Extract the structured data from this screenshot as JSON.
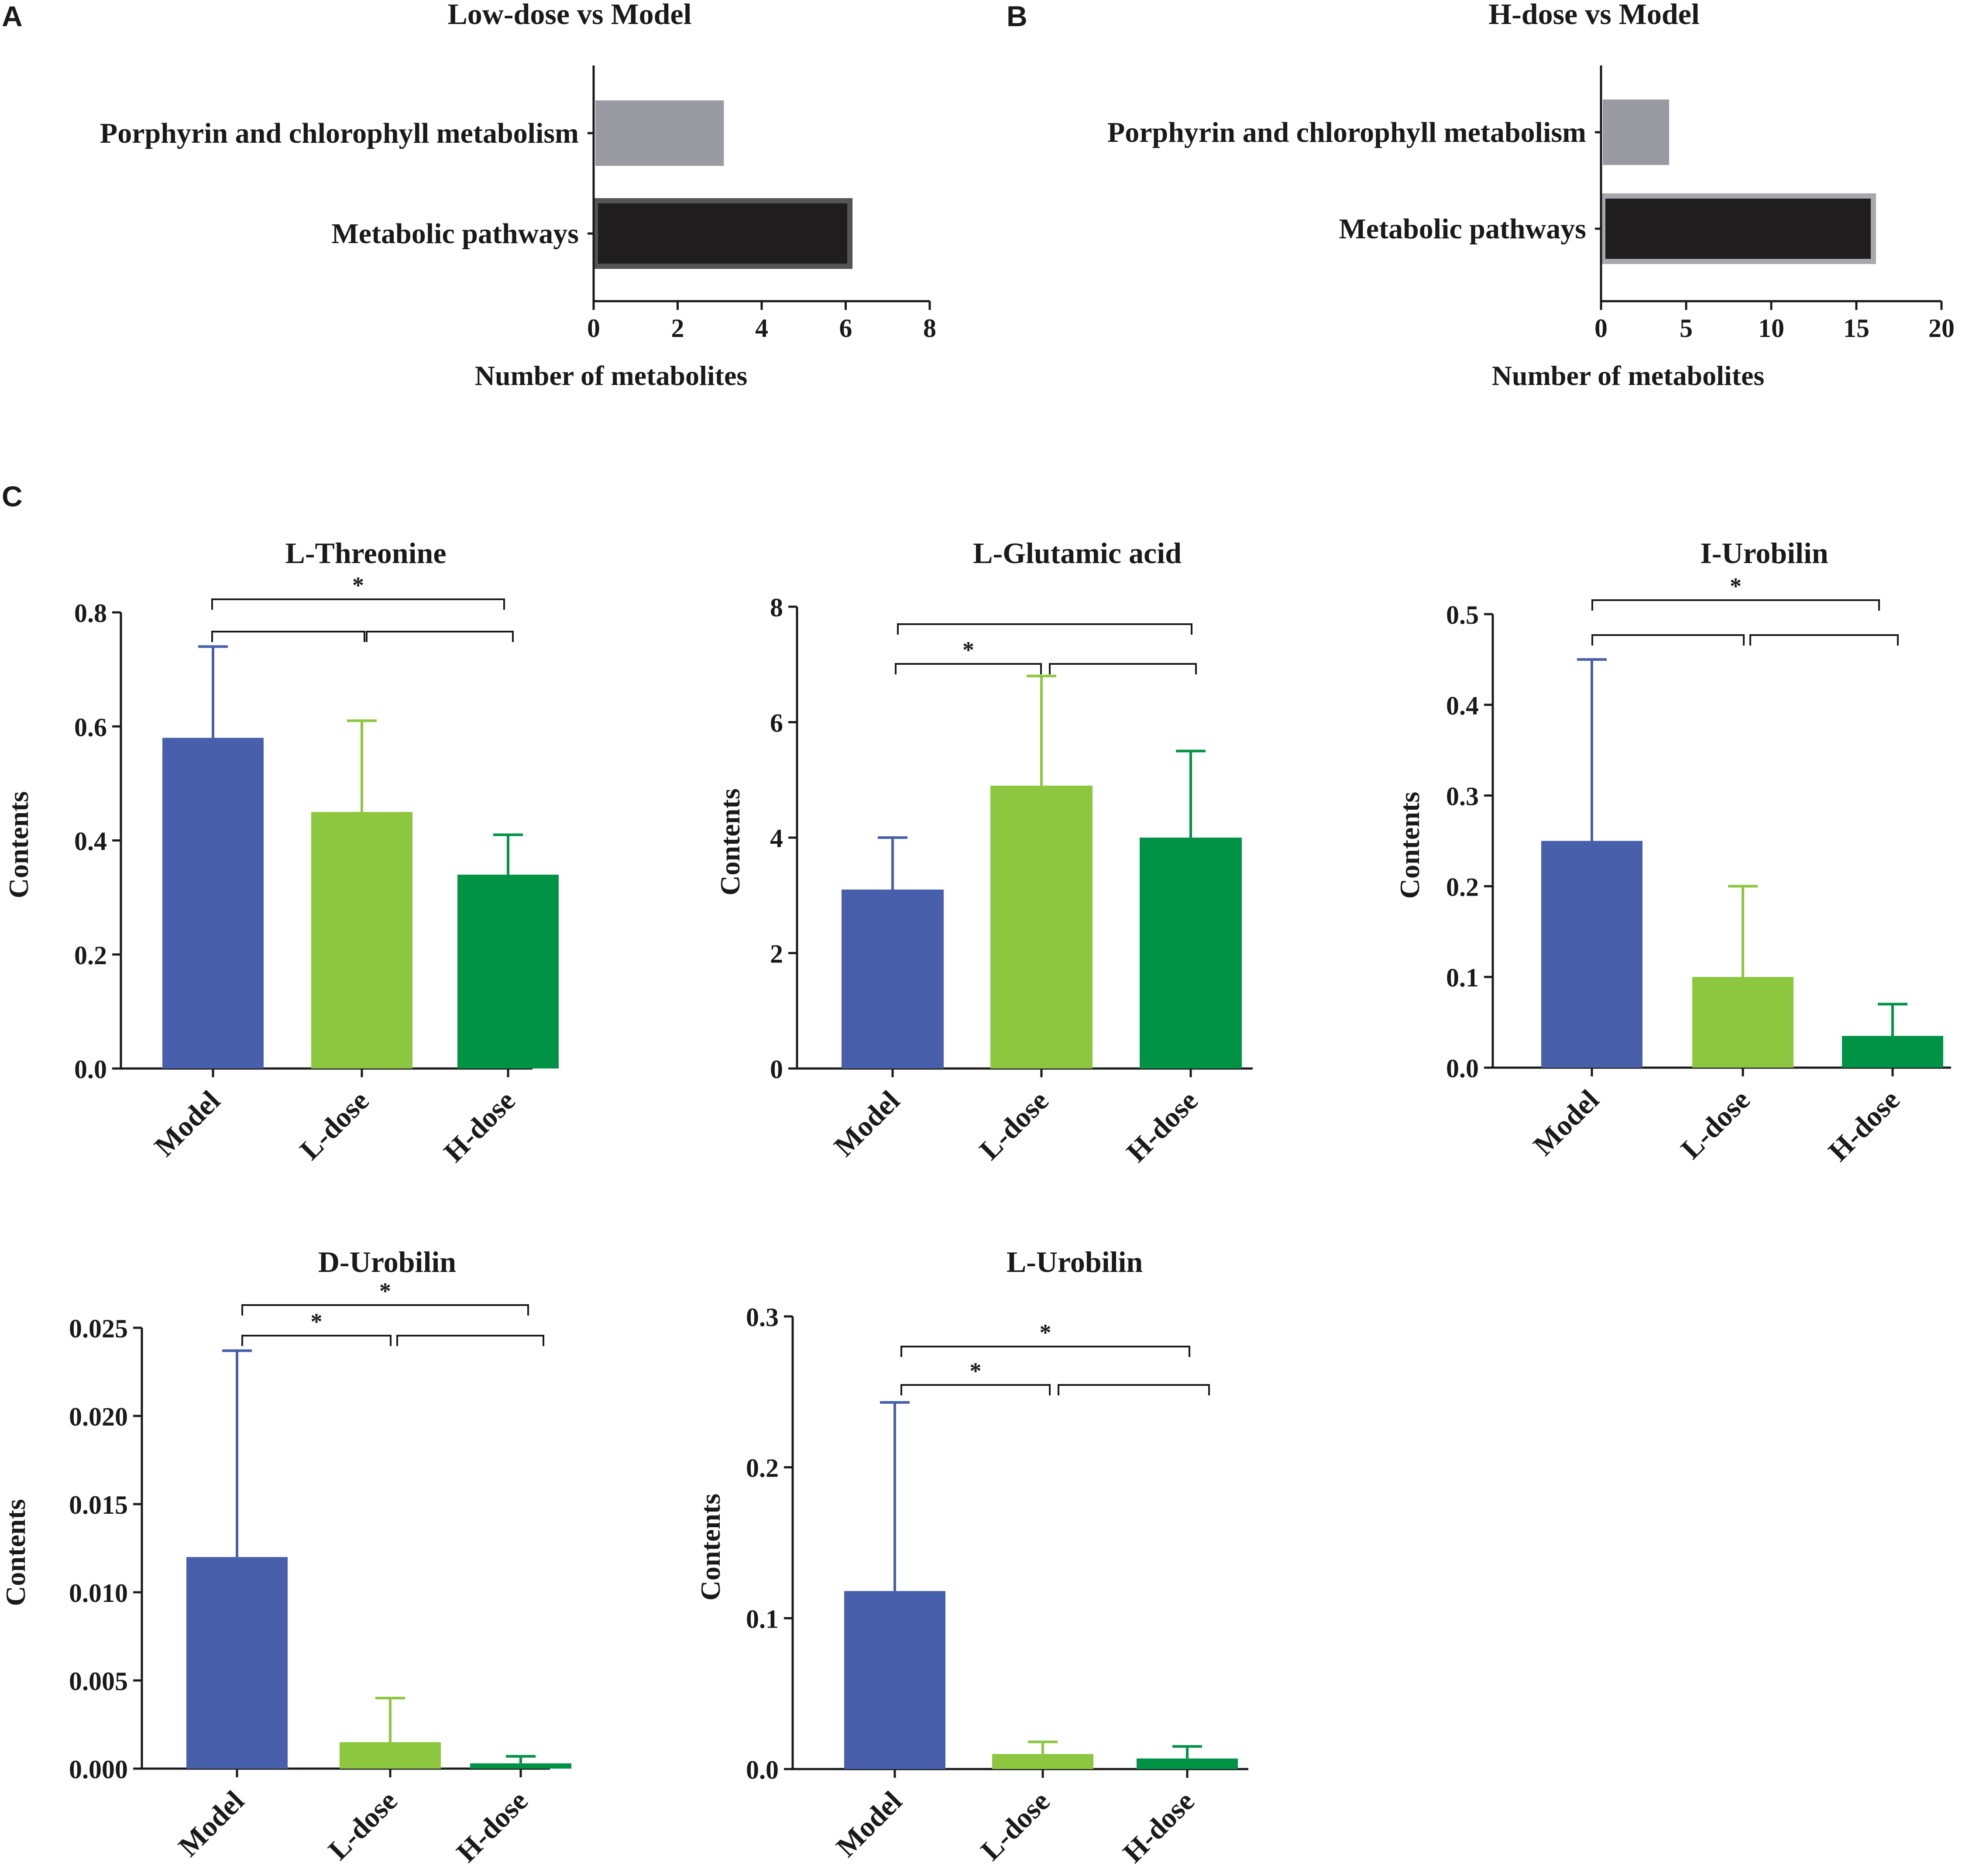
{
  "figure": {
    "panel_labels": [
      "A",
      "B",
      "C"
    ]
  },
  "chart_data": [
    {
      "id": "A",
      "type": "bar",
      "orientation": "horizontal",
      "title": "Low-dose vs Model",
      "xlabel": "Number of metabolites",
      "ylabel": "",
      "xlim": [
        0,
        8
      ],
      "ticks": [
        "0",
        "2",
        "4",
        "6",
        "8"
      ],
      "categories": [
        "Porphyrin and chlorophyll metabolism",
        "Metabolic pathways"
      ],
      "values": [
        3.1,
        6.1
      ],
      "colors": [
        "#9a9aa3",
        "#1f1d1e"
      ]
    },
    {
      "id": "B",
      "type": "bar",
      "orientation": "horizontal",
      "title": "H-dose vs Model",
      "xlabel": "Number of metabolites",
      "ylabel": "",
      "xlim": [
        0,
        20
      ],
      "ticks": [
        "0",
        "5",
        "10",
        "15",
        "20"
      ],
      "categories": [
        "Porphyrin and chlorophyll metabolism",
        "Metabolic pathways"
      ],
      "values": [
        4,
        16
      ],
      "colors": [
        "#9a9aa3",
        "#1f1d1e"
      ]
    },
    {
      "id": "C1",
      "type": "bar",
      "title": "L-Threonine",
      "xlabel": "",
      "ylabel": "Contents",
      "ylim": [
        0,
        0.8
      ],
      "ticks": [
        "0.0",
        "0.2",
        "0.4",
        "0.6",
        "0.8"
      ],
      "categories": [
        "Model",
        "L-dose",
        "H-dose"
      ],
      "values": [
        0.58,
        0.45,
        0.34
      ],
      "errors": [
        0.16,
        0.16,
        0.07
      ],
      "colors": [
        "#4860ab",
        "#8dc63f",
        "#009245"
      ],
      "significance": [
        {
          "from": 0,
          "to": 2,
          "label": "*"
        },
        {
          "from": 0,
          "to": 1,
          "label": ""
        },
        {
          "from": 1,
          "to": 2,
          "label": ""
        }
      ]
    },
    {
      "id": "C2",
      "type": "bar",
      "title": "L-Glutamic acid",
      "xlabel": "",
      "ylabel": "Contents",
      "ylim": [
        0,
        8
      ],
      "ticks": [
        "0",
        "2",
        "4",
        "6",
        "8"
      ],
      "categories": [
        "Model",
        "L-dose",
        "H-dose"
      ],
      "values": [
        3.1,
        4.9,
        4.0
      ],
      "errors": [
        0.9,
        1.9,
        1.5
      ],
      "colors": [
        "#4860ab",
        "#8dc63f",
        "#009245"
      ],
      "significance": [
        {
          "from": 0,
          "to": 2,
          "label": ""
        },
        {
          "from": 0,
          "to": 1,
          "label": "*"
        },
        {
          "from": 1,
          "to": 2,
          "label": ""
        }
      ]
    },
    {
      "id": "C3",
      "type": "bar",
      "title": "I-Urobilin",
      "xlabel": "",
      "ylabel": "Contents",
      "ylim": [
        0,
        0.5
      ],
      "ticks": [
        "0.0",
        "0.1",
        "0.2",
        "0.3",
        "0.4",
        "0.5"
      ],
      "categories": [
        "Model",
        "L-dose",
        "H-dose"
      ],
      "values": [
        0.25,
        0.1,
        0.035
      ],
      "errors": [
        0.2,
        0.1,
        0.035
      ],
      "colors": [
        "#4860ab",
        "#8dc63f",
        "#009245"
      ],
      "significance": [
        {
          "from": 0,
          "to": 2,
          "label": "*"
        },
        {
          "from": 0,
          "to": 1,
          "label": ""
        },
        {
          "from": 1,
          "to": 2,
          "label": ""
        }
      ]
    },
    {
      "id": "C4",
      "type": "bar",
      "title": "D-Urobilin",
      "xlabel": "",
      "ylabel": "Contents",
      "ylim": [
        0,
        0.025
      ],
      "ticks": [
        "0.000",
        "0.005",
        "0.010",
        "0.015",
        "0.020",
        "0.025"
      ],
      "categories": [
        "Model",
        "L-dose",
        "H-dose"
      ],
      "values": [
        0.012,
        0.0015,
        0.0003
      ],
      "errors": [
        0.0117,
        0.0025,
        0.0004
      ],
      "colors": [
        "#4860ab",
        "#8dc63f",
        "#009245"
      ],
      "significance": [
        {
          "from": 0,
          "to": 2,
          "label": "*"
        },
        {
          "from": 0,
          "to": 1,
          "label": "*"
        },
        {
          "from": 1,
          "to": 2,
          "label": ""
        }
      ]
    },
    {
      "id": "C5",
      "type": "bar",
      "title": "L-Urobilin",
      "xlabel": "",
      "ylabel": "Contents",
      "ylim": [
        0,
        0.3
      ],
      "ticks": [
        "0.0",
        "0.1",
        "0.2",
        "0.3"
      ],
      "categories": [
        "Model",
        "L-dose",
        "H-dose"
      ],
      "values": [
        0.118,
        0.01,
        0.007
      ],
      "errors": [
        0.125,
        0.008,
        0.008
      ],
      "colors": [
        "#4860ab",
        "#8dc63f",
        "#009245"
      ],
      "significance": [
        {
          "from": 0,
          "to": 2,
          "label": "*"
        },
        {
          "from": 0,
          "to": 1,
          "label": "*"
        },
        {
          "from": 1,
          "to": 2,
          "label": ""
        }
      ]
    }
  ]
}
